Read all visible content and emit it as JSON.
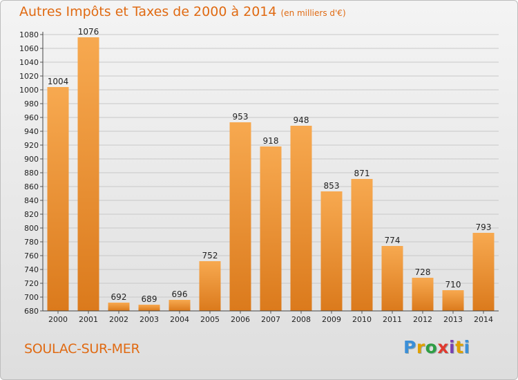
{
  "title": "Autres Impôts et Taxes de 2000 à 2014",
  "title_unit": "(en milliers d'€)",
  "location": "SOULAC-SUR-MER",
  "logo": {
    "text": "Proxiti",
    "letter_colors": [
      "#3b8fd8",
      "#e0a000",
      "#2f9e44",
      "#e03a2f",
      "#7a3fb0",
      "#e0a000",
      "#3b8fd8"
    ]
  },
  "colors": {
    "bar_light": "#f7a950",
    "bar_dark": "#db7a1c",
    "title": "#e06a12"
  },
  "chart_data": {
    "type": "bar",
    "title": "Autres Impôts et Taxes de 2000 à 2014",
    "subtitle": "(en milliers d'€)",
    "categories": [
      "2000",
      "2001",
      "2002",
      "2003",
      "2004",
      "2005",
      "2006",
      "2007",
      "2008",
      "2009",
      "2010",
      "2011",
      "2012",
      "2013",
      "2014"
    ],
    "values": [
      1004,
      1076,
      692,
      689,
      696,
      752,
      953,
      918,
      948,
      853,
      871,
      774,
      728,
      710,
      793
    ],
    "ylim": [
      680,
      1080
    ],
    "yticks": [
      680,
      700,
      720,
      740,
      760,
      780,
      800,
      820,
      840,
      860,
      880,
      900,
      920,
      940,
      960,
      980,
      1000,
      1020,
      1040,
      1060,
      1080
    ],
    "grid": true,
    "xlabel": "",
    "ylabel": ""
  }
}
